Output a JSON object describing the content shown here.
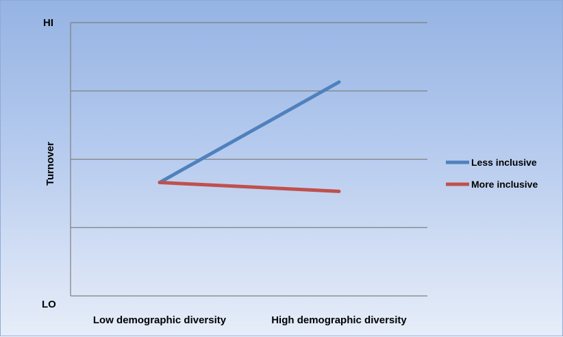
{
  "chart_data": {
    "type": "line",
    "title": "",
    "xlabel": "",
    "ylabel": "Turnover",
    "categories": [
      "Low demographic diversity",
      "High demographic diversity"
    ],
    "y_tick_labels": {
      "top": "HI",
      "bottom": "LO"
    },
    "ylim": [
      0,
      4
    ],
    "grid": true,
    "legend_position": "right",
    "series": [
      {
        "name": "Less inclusive",
        "color": "#4f81bd",
        "values": [
          1.66,
          3.13
        ]
      },
      {
        "name": "More inclusive",
        "color": "#c0504d",
        "values": [
          1.66,
          1.53
        ]
      }
    ]
  }
}
